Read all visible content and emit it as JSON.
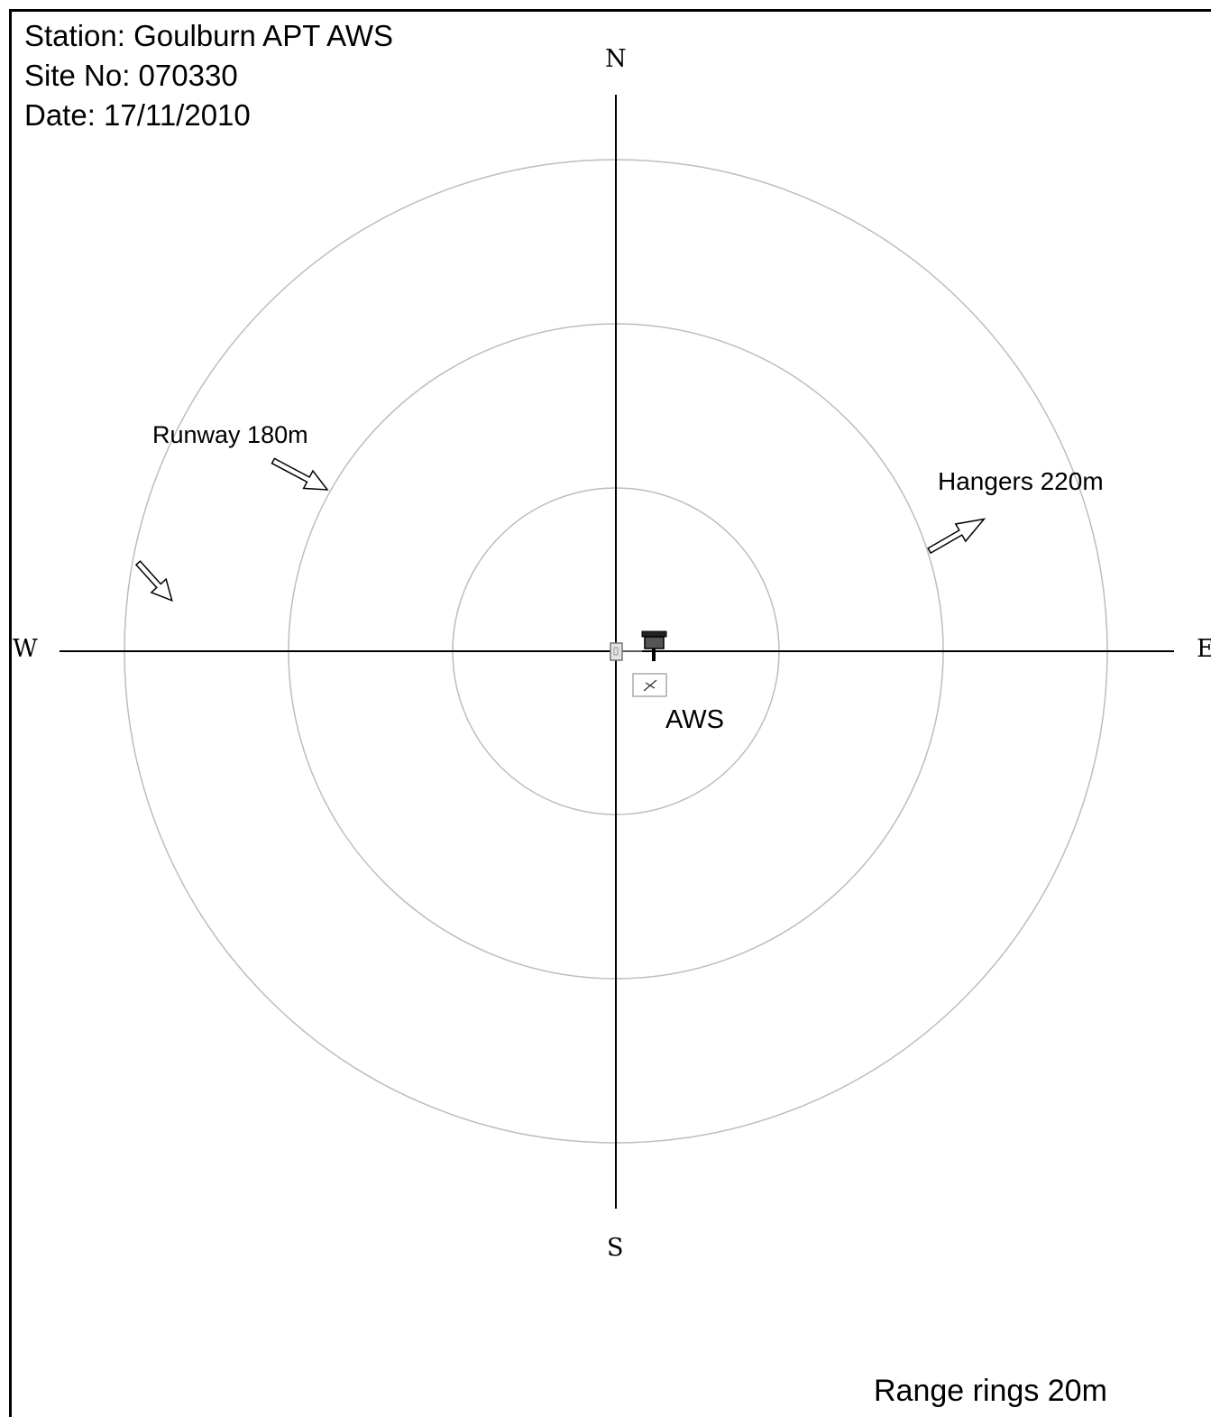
{
  "header": {
    "station": "Station: Goulburn APT AWS",
    "site_no": "Site No: 070330",
    "date": "Date: 17/11/2010"
  },
  "compass": {
    "north": "N",
    "south": "S",
    "west": "W",
    "east": "E"
  },
  "features": {
    "runway_label": "Runway 180m",
    "hangers_label": "Hangers 220m",
    "aws_label": "AWS"
  },
  "footer": {
    "range_rings": "Range rings 20m"
  },
  "colors": {
    "ring": "#bdbdbd",
    "axis": "#000000"
  },
  "icons": [
    "enclosure-icon",
    "rain-gauge-icon",
    "stevenson-screen-icon",
    "runway-arrow-icon",
    "hangers-arrow-icon"
  ]
}
